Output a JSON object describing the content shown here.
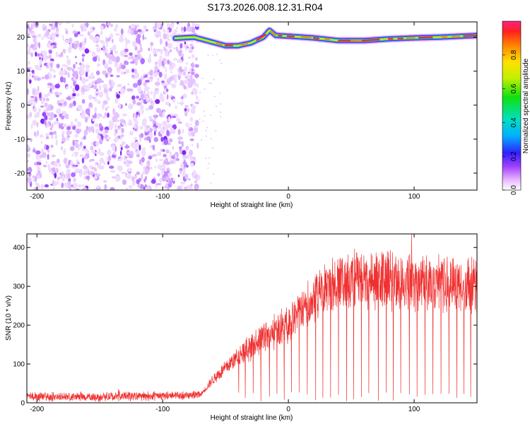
{
  "title": "S173.2026.008.12.31.R04",
  "chart_data": [
    {
      "type": "heatmap",
      "title": "",
      "xlabel": "Height of straight line (km)",
      "ylabel": "Frequency (Hz)",
      "xlim": [
        -208,
        150
      ],
      "ylim": [
        -25,
        24.5
      ],
      "xticks": [
        -200,
        -100,
        0,
        100
      ],
      "yticks": [
        -20,
        -10,
        0,
        10,
        20
      ],
      "colorbar": {
        "label": "Normalized spectral amplitude",
        "range": [
          0,
          1
        ],
        "ticks": [
          0.0,
          0.2,
          0.4,
          0.6,
          0.8
        ]
      },
      "ridge": {
        "description": "dominant frequency track",
        "x": [
          -90,
          -75,
          -60,
          -50,
          -40,
          -30,
          -20,
          -15,
          -10,
          0,
          20,
          40,
          60,
          80,
          100,
          120,
          150
        ],
        "y": [
          19.7,
          20.0,
          18.5,
          17.5,
          17.5,
          18.3,
          20.0,
          22.0,
          20.5,
          20.3,
          19.8,
          19.0,
          19.0,
          19.5,
          19.8,
          20.0,
          20.5
        ]
      },
      "noise_region_x": [
        -208,
        -78
      ]
    },
    {
      "type": "line",
      "title": "",
      "xlabel": "Height of straight line (km)",
      "ylabel": "SNR (10 * v/v)",
      "xlim": [
        -208,
        150
      ],
      "ylim": [
        0,
        435
      ],
      "xticks": [
        -200,
        -100,
        0,
        100
      ],
      "yticks": [
        0,
        100,
        200,
        300,
        400
      ],
      "color": "#f03030",
      "series": [
        {
          "name": "SNR",
          "envelope_x": [
            -208,
            -150,
            -100,
            -70,
            -60,
            -40,
            -20,
            0,
            20,
            40,
            60,
            80,
            100,
            120,
            150
          ],
          "envelope_y": [
            15,
            15,
            18,
            20,
            60,
            120,
            170,
            200,
            275,
            310,
            320,
            315,
            310,
            310,
            300
          ],
          "peak": {
            "x": 98,
            "y": 435
          }
        }
      ]
    }
  ]
}
